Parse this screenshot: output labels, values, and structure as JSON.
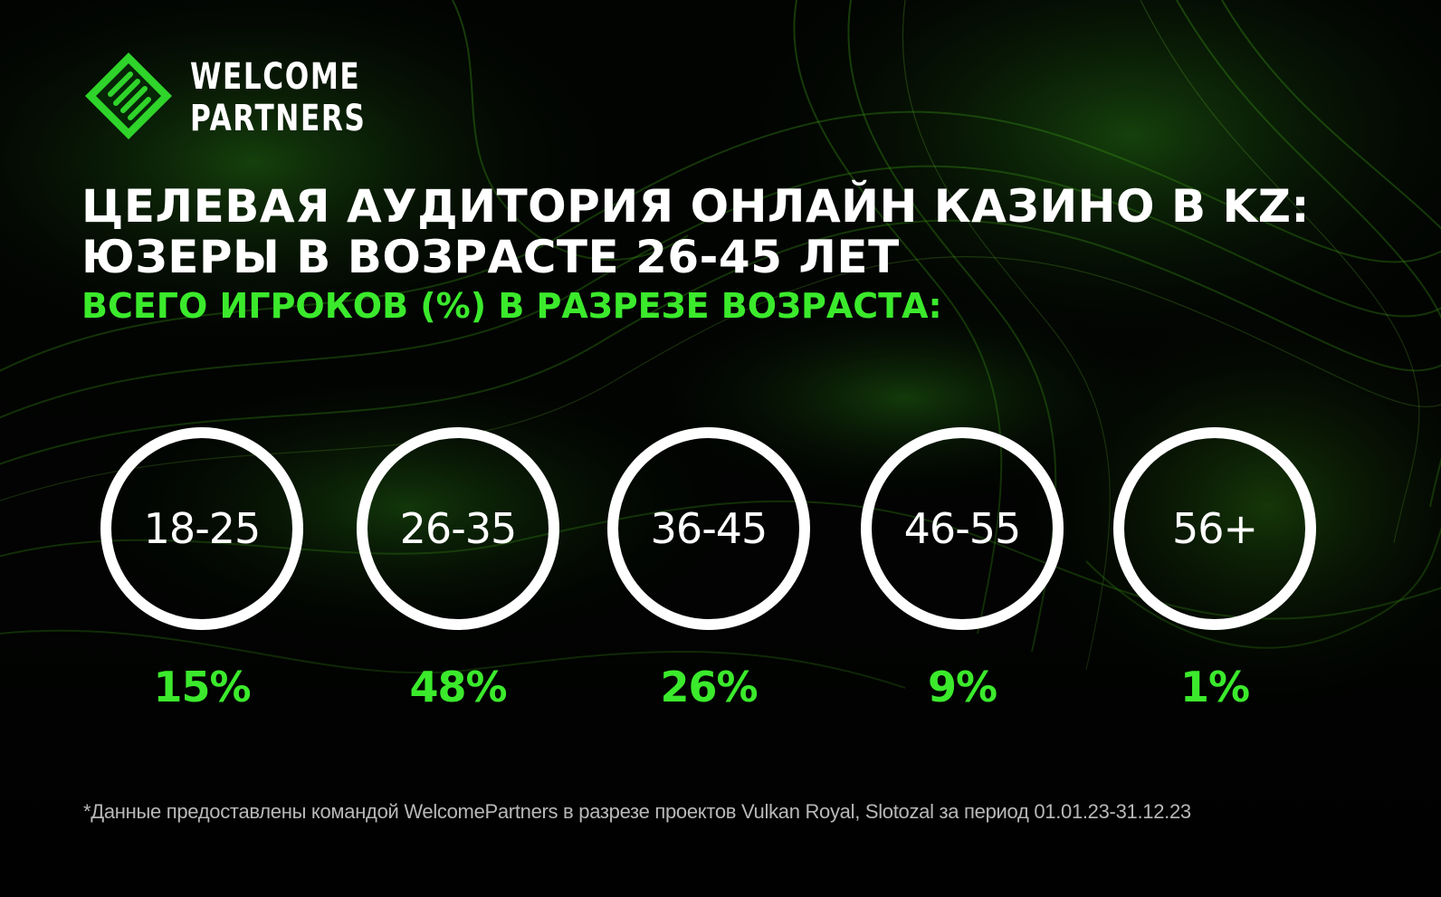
{
  "brand": {
    "line1": "WELCOME",
    "line2": "PARTNERS",
    "accent": "#3bea2c"
  },
  "headline": {
    "line1": "ЦЕЛЕВАЯ АУДИТОРИЯ ОНЛАЙН КАЗИНО В KZ:",
    "line2": "ЮЗЕРЫ В ВОЗРАСТЕ 26-45 ЛЕТ"
  },
  "subheadline": "ВСЕГО ИГРОКОВ (%) В РАЗРЕЗЕ ВОЗРАСТА:",
  "age_groups": [
    {
      "label": "18-25",
      "percent": "15%"
    },
    {
      "label": "26-35",
      "percent": "48%"
    },
    {
      "label": "36-45",
      "percent": "26%"
    },
    {
      "label": "46-55",
      "percent": "9%"
    },
    {
      "label": "56+",
      "percent": "1%"
    }
  ],
  "footnote": "*Данные предоставлены командой WelcomePartners в разрезе проектов Vulkan Royal, Slotozal за период 01.01.23-31.12.23",
  "colors": {
    "background": "#020402",
    "accent": "#3bea2c",
    "ring": "#ffffff"
  }
}
